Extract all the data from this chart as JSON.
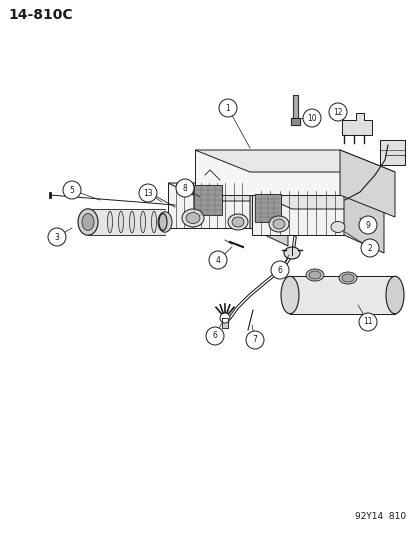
{
  "bg_color": "#ffffff",
  "title_code": "14-810C",
  "footer_code": "92Y14  810",
  "title_fontsize": 10,
  "footer_fontsize": 6.5,
  "fig_width": 4.14,
  "fig_height": 5.33,
  "dpi": 100,
  "line_color": "#1a1a1a",
  "fill_light": "#f0f0f0",
  "fill_mid": "#d8d8d8",
  "fill_dark": "#aaaaaa"
}
